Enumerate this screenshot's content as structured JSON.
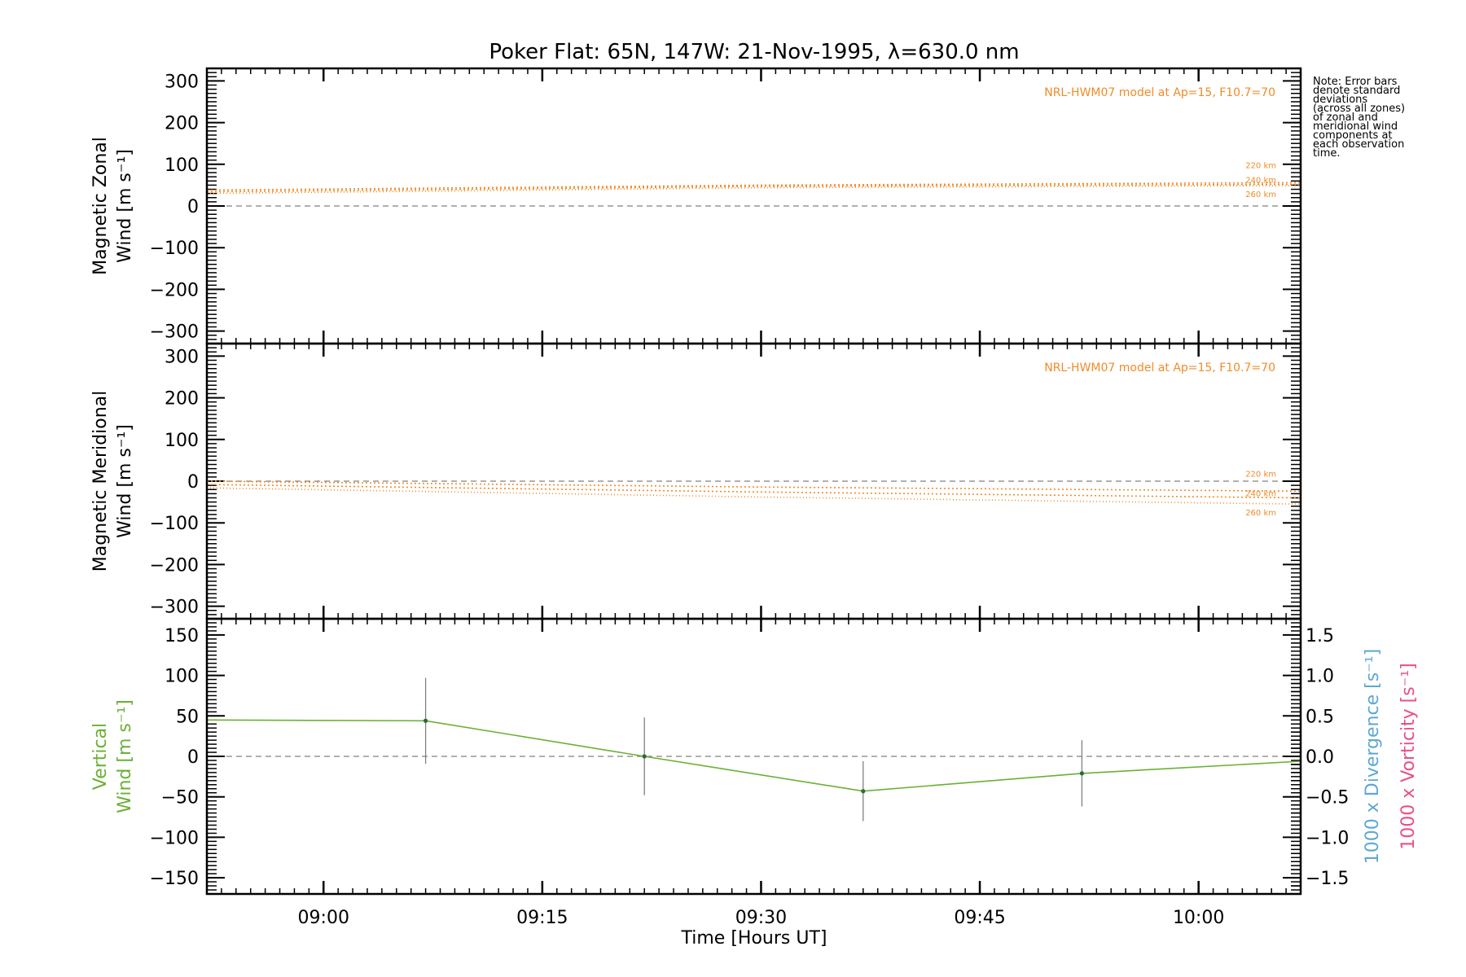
{
  "chart_data": {
    "type": "line",
    "title": "Poker Flat: 65N, 147W: 21-Nov-1995, λ=630.0 nm",
    "xlabel": "Time [Hours UT]",
    "x_unit": "UT time",
    "x_range": [
      "08:52",
      "10:07"
    ],
    "x_ticks": [
      "09:00",
      "09:15",
      "09:30",
      "09:45",
      "10:00"
    ],
    "note": [
      "Note: Error bars",
      "denote standard",
      "deviations",
      "(across all zones)",
      "of zonal and",
      "meridional wind",
      "components at",
      "each observation",
      "time."
    ],
    "colors": {
      "model": "#f08c28",
      "vertical": "#6ab034",
      "divergence": "#5fa8d3",
      "vorticity": "#e8508a",
      "zero_line": "#808080",
      "error_bar": "#808080"
    },
    "panels": [
      {
        "name": "zonal",
        "ylabel_line1": "Magnetic Zonal",
        "ylabel_line2": "Wind [m s⁻¹]",
        "ylim": [
          -330,
          330
        ],
        "y_ticks": [
          300,
          200,
          100,
          0,
          -100,
          -200,
          -300
        ],
        "y_tick_labels": [
          "300",
          "200",
          "100",
          "0",
          "−100",
          "−200",
          "−300"
        ],
        "model_label": "NRL-HWM07 model at Ap=15, F10.7=70",
        "model_series": [
          {
            "name": "220 km",
            "x": [
              "08:52",
              "09:30",
              "10:07"
            ],
            "y": [
              38,
              50,
              56
            ]
          },
          {
            "name": "240 km",
            "x": [
              "08:52",
              "09:30",
              "10:07"
            ],
            "y": [
              34,
              47,
              52
            ]
          },
          {
            "name": "260 km",
            "x": [
              "08:52",
              "09:30",
              "10:07"
            ],
            "y": [
              30,
              44,
              49
            ]
          }
        ]
      },
      {
        "name": "meridional",
        "ylabel_line1": "Magnetic Meridional",
        "ylabel_line2": "Wind [m s⁻¹]",
        "ylim": [
          -330,
          330
        ],
        "y_ticks": [
          300,
          200,
          100,
          0,
          -100,
          -200,
          -300
        ],
        "y_tick_labels": [
          "300",
          "200",
          "100",
          "0",
          "−100",
          "−200",
          "−300"
        ],
        "model_label": "NRL-HWM07 model at Ap=15, F10.7=70",
        "model_series": [
          {
            "name": "220 km",
            "x": [
              "08:52",
              "09:30",
              "10:07"
            ],
            "y": [
              0,
              -14,
              -24
            ]
          },
          {
            "name": "240 km",
            "x": [
              "08:52",
              "09:30",
              "10:07"
            ],
            "y": [
              -8,
              -26,
              -40
            ]
          },
          {
            "name": "260 km",
            "x": [
              "08:52",
              "09:30",
              "10:07"
            ],
            "y": [
              -16,
              -38,
              -55
            ]
          }
        ]
      },
      {
        "name": "vertical",
        "ylabel_line1": "Vertical",
        "ylabel_line2": "Wind [m s⁻¹]",
        "ylim": [
          -170,
          170
        ],
        "y_ticks": [
          150,
          100,
          50,
          0,
          -50,
          -100,
          -150
        ],
        "y_tick_labels": [
          "150",
          "100",
          "50",
          "0",
          "−50",
          "−100",
          "−150"
        ],
        "right_ylim": [
          -1.7,
          1.7
        ],
        "right_ticks": [
          1.5,
          1.0,
          0.5,
          0.0,
          -0.5,
          -1.0,
          -1.5
        ],
        "right_tick_labels": [
          "1.5",
          "1.0",
          "0.5",
          "0.0",
          "−0.5",
          "−1.0",
          "−1.5"
        ],
        "right_label_1": "1000 x Divergence [s⁻¹]",
        "right_label_2": "1000 x Vorticity [s⁻¹]",
        "line": {
          "x": [
            "08:52",
            "09:07",
            "09:22",
            "09:37",
            "09:52",
            "10:07"
          ],
          "y": [
            45,
            44,
            0,
            -43,
            -21,
            -6
          ]
        },
        "points": [
          {
            "x": "09:07",
            "y": 44,
            "err": 53
          },
          {
            "x": "09:22",
            "y": 0,
            "err": 48
          },
          {
            "x": "09:37",
            "y": -43,
            "err": 37
          },
          {
            "x": "09:52",
            "y": -21,
            "err": 41
          }
        ]
      }
    ]
  }
}
